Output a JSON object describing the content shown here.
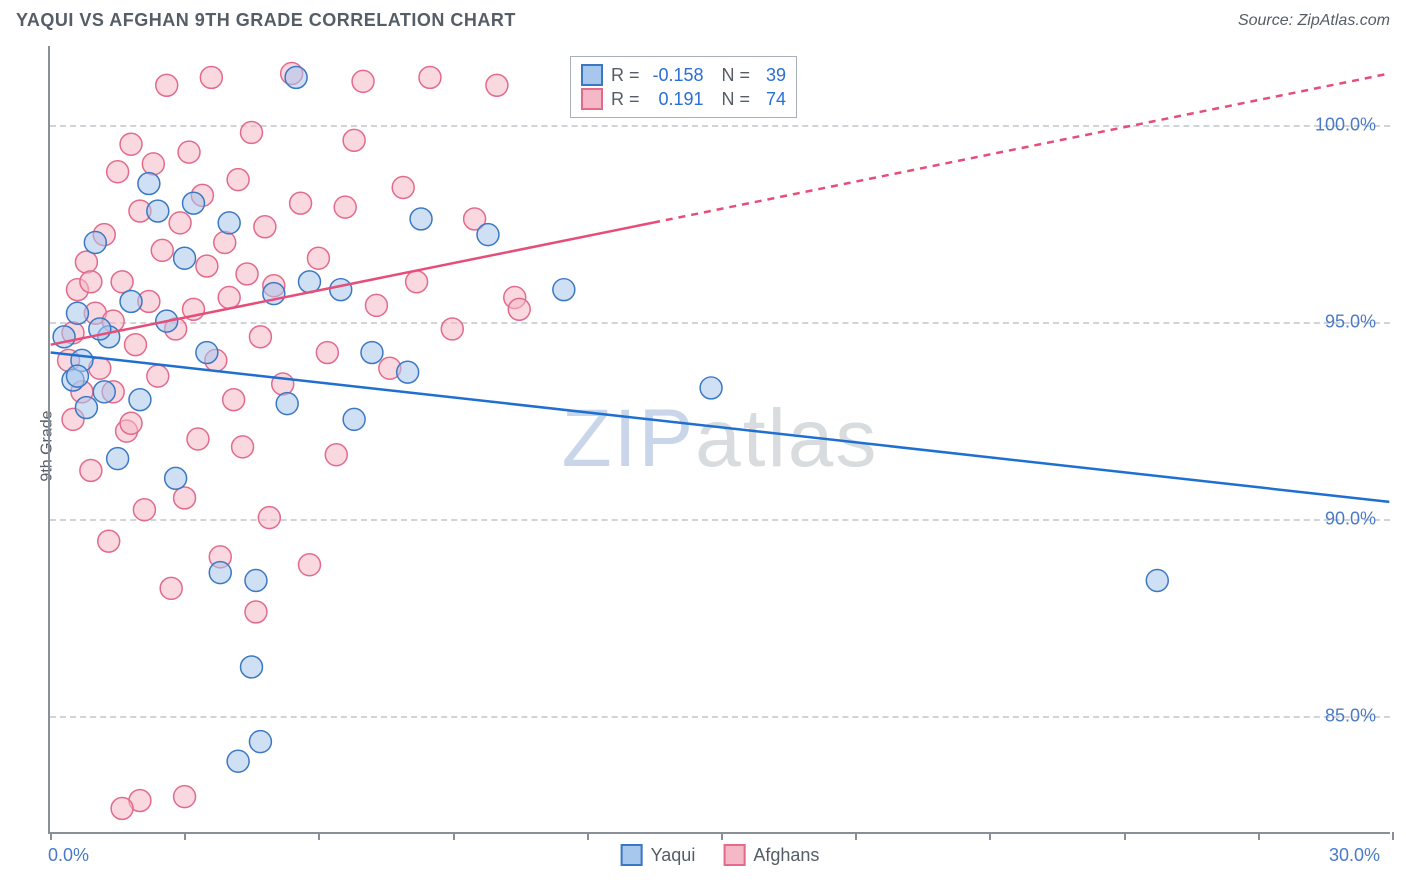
{
  "header": {
    "title": "YAQUI VS AFGHAN 9TH GRADE CORRELATION CHART",
    "source_prefix": "Source: ",
    "source": "ZipAtlas.com"
  },
  "watermark": {
    "part1": "ZIP",
    "part2": "atlas"
  },
  "chart": {
    "type": "scatter",
    "ylabel": "9th Grade",
    "xlim": [
      0,
      30
    ],
    "ylim": [
      82,
      102
    ],
    "background_color": "#ffffff",
    "grid_color": "#d0d4d9",
    "axis_color": "#888f98",
    "tick_label_color": "#4a7ac7",
    "label_color": "#555d66",
    "ytick_positions": [
      85,
      90,
      95,
      100
    ],
    "ytick_labels": [
      "85.0%",
      "90.0%",
      "95.0%",
      "100.0%"
    ],
    "xtick_positions": [
      0,
      3,
      6,
      9,
      12,
      15,
      18,
      21,
      24,
      27,
      30
    ],
    "xtick_endlabels": {
      "left": "0.0%",
      "right": "30.0%"
    },
    "point_radius": 11,
    "point_opacity": 0.55,
    "point_stroke_width": 1.5,
    "line_width": 2.5,
    "series": [
      {
        "name": "Yaqui",
        "fill": "#a7c7ec",
        "stroke": "#3b78c4",
        "line_color": "#1f6fd1",
        "R": "-0.158",
        "N": "39",
        "trend": {
          "x1": 0,
          "y1": 94.2,
          "x2": 30,
          "y2": 90.4,
          "dash_after_x": null
        },
        "points": [
          [
            0.3,
            94.6
          ],
          [
            0.5,
            93.5
          ],
          [
            0.6,
            95.2
          ],
          [
            0.8,
            92.8
          ],
          [
            0.7,
            94.0
          ],
          [
            1.0,
            97.0
          ],
          [
            1.2,
            93.2
          ],
          [
            1.5,
            91.5
          ],
          [
            1.8,
            95.5
          ],
          [
            1.3,
            94.6
          ],
          [
            2.0,
            93.0
          ],
          [
            2.2,
            98.5
          ],
          [
            2.4,
            97.8
          ],
          [
            2.6,
            95.0
          ],
          [
            2.8,
            91.0
          ],
          [
            3.0,
            96.6
          ],
          [
            3.2,
            98.0
          ],
          [
            3.5,
            94.2
          ],
          [
            3.8,
            88.6
          ],
          [
            4.0,
            97.5
          ],
          [
            4.2,
            83.8
          ],
          [
            4.5,
            86.2
          ],
          [
            4.6,
            88.4
          ],
          [
            4.7,
            84.3
          ],
          [
            5.0,
            95.7
          ],
          [
            5.3,
            92.9
          ],
          [
            5.5,
            101.2
          ],
          [
            5.8,
            96.0
          ],
          [
            6.5,
            95.8
          ],
          [
            6.8,
            92.5
          ],
          [
            7.2,
            94.2
          ],
          [
            8.0,
            93.7
          ],
          [
            8.3,
            97.6
          ],
          [
            9.8,
            97.2
          ],
          [
            11.5,
            95.8
          ],
          [
            14.8,
            93.3
          ],
          [
            24.8,
            88.4
          ],
          [
            0.6,
            93.6
          ],
          [
            1.1,
            94.8
          ]
        ]
      },
      {
        "name": "Afghans",
        "fill": "#f4b8c7",
        "stroke": "#e36a8b",
        "line_color": "#e64d79",
        "R": "0.191",
        "N": "74",
        "trend": {
          "x1": 0,
          "y1": 94.4,
          "x2": 30,
          "y2": 101.3,
          "dash_after_x": 13.5
        },
        "points": [
          [
            0.4,
            94.0
          ],
          [
            0.5,
            92.5
          ],
          [
            0.6,
            95.8
          ],
          [
            0.7,
            93.2
          ],
          [
            0.8,
            96.5
          ],
          [
            0.9,
            91.2
          ],
          [
            1.0,
            95.2
          ],
          [
            1.1,
            93.8
          ],
          [
            1.2,
            97.2
          ],
          [
            1.3,
            89.4
          ],
          [
            1.4,
            95.0
          ],
          [
            1.5,
            98.8
          ],
          [
            1.6,
            96.0
          ],
          [
            1.7,
            92.2
          ],
          [
            1.8,
            99.5
          ],
          [
            1.9,
            94.4
          ],
          [
            2.0,
            97.8
          ],
          [
            2.1,
            90.2
          ],
          [
            2.2,
            95.5
          ],
          [
            2.3,
            99.0
          ],
          [
            2.4,
            93.6
          ],
          [
            2.5,
            96.8
          ],
          [
            2.6,
            101.0
          ],
          [
            2.7,
            88.2
          ],
          [
            2.8,
            94.8
          ],
          [
            2.9,
            97.5
          ],
          [
            3.0,
            90.5
          ],
          [
            3.1,
            99.3
          ],
          [
            3.2,
            95.3
          ],
          [
            3.3,
            92.0
          ],
          [
            3.4,
            98.2
          ],
          [
            3.5,
            96.4
          ],
          [
            3.6,
            101.2
          ],
          [
            3.7,
            94.0
          ],
          [
            3.8,
            89.0
          ],
          [
            3.9,
            97.0
          ],
          [
            4.0,
            95.6
          ],
          [
            4.1,
            93.0
          ],
          [
            4.2,
            98.6
          ],
          [
            4.3,
            91.8
          ],
          [
            4.4,
            96.2
          ],
          [
            4.5,
            99.8
          ],
          [
            4.6,
            87.6
          ],
          [
            4.7,
            94.6
          ],
          [
            4.8,
            97.4
          ],
          [
            4.9,
            90.0
          ],
          [
            5.0,
            95.9
          ],
          [
            5.2,
            93.4
          ],
          [
            5.4,
            101.3
          ],
          [
            5.6,
            98.0
          ],
          [
            5.8,
            88.8
          ],
          [
            6.0,
            96.6
          ],
          [
            6.2,
            94.2
          ],
          [
            6.4,
            91.6
          ],
          [
            6.6,
            97.9
          ],
          [
            6.8,
            99.6
          ],
          [
            7.0,
            101.1
          ],
          [
            7.3,
            95.4
          ],
          [
            7.6,
            93.8
          ],
          [
            7.9,
            98.4
          ],
          [
            8.2,
            96.0
          ],
          [
            8.5,
            101.2
          ],
          [
            9.0,
            94.8
          ],
          [
            9.5,
            97.6
          ],
          [
            10.0,
            101.0
          ],
          [
            10.4,
            95.6
          ],
          [
            10.5,
            95.3
          ],
          [
            2.0,
            82.8
          ],
          [
            3.0,
            82.9
          ],
          [
            1.6,
            82.6
          ],
          [
            0.5,
            94.7
          ],
          [
            0.9,
            96.0
          ],
          [
            1.4,
            93.2
          ],
          [
            1.8,
            92.4
          ]
        ]
      }
    ]
  },
  "legend": {
    "items": [
      {
        "label": "Yaqui",
        "fill": "#a7c7ec",
        "stroke": "#3b78c4"
      },
      {
        "label": "Afghans",
        "fill": "#f4b8c7",
        "stroke": "#e36a8b"
      }
    ]
  }
}
